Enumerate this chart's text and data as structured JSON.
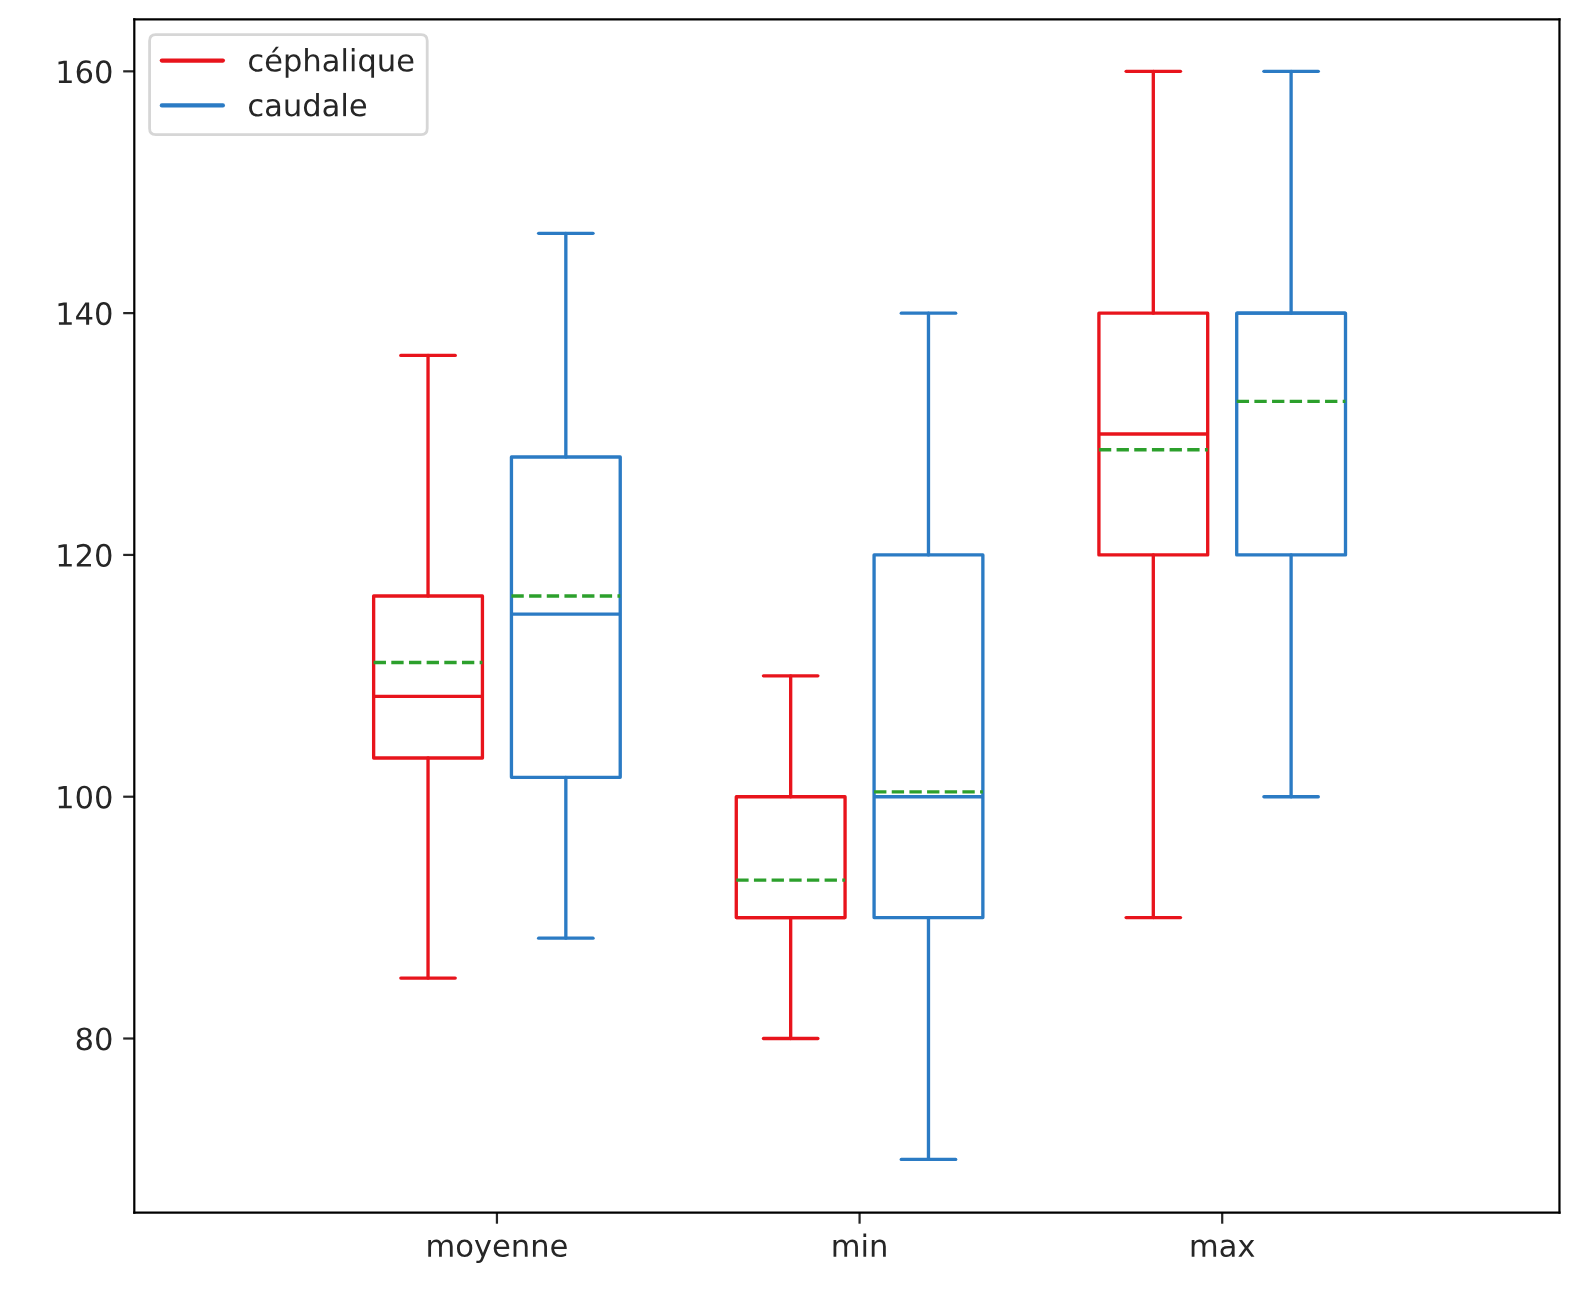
{
  "chart_data": {
    "type": "box",
    "categories": [
      "moyenne",
      "min",
      "max"
    ],
    "series": [
      {
        "name": "céphalique",
        "color": "#e8141c",
        "boxes": [
          {
            "low": 85,
            "q1": 103.2,
            "median": 108.3,
            "q3": 116.6,
            "high": 136.5,
            "mean": 111.1
          },
          {
            "low": 80,
            "q1": 90,
            "median": 90,
            "q3": 100,
            "high": 110,
            "mean": 93.1
          },
          {
            "low": 90,
            "q1": 120,
            "median": 130,
            "q3": 140,
            "high": 160,
            "mean": 128.7
          }
        ]
      },
      {
        "name": "caudale",
        "color": "#2b7bc4",
        "boxes": [
          {
            "low": 88.3,
            "q1": 101.6,
            "median": 115.1,
            "q3": 128.1,
            "high": 146.6,
            "mean": 116.6
          },
          {
            "low": 70,
            "q1": 90,
            "median": 100,
            "q3": 120,
            "high": 140,
            "mean": 100.4
          },
          {
            "low": 100,
            "q1": 120,
            "median": 140,
            "q3": 140,
            "high": 160,
            "mean": 132.7
          }
        ]
      }
    ],
    "ylim": [
      65.6,
      164.3
    ],
    "yticks": [
      80,
      100,
      120,
      140,
      160
    ],
    "grid": false,
    "legend": "top left"
  }
}
